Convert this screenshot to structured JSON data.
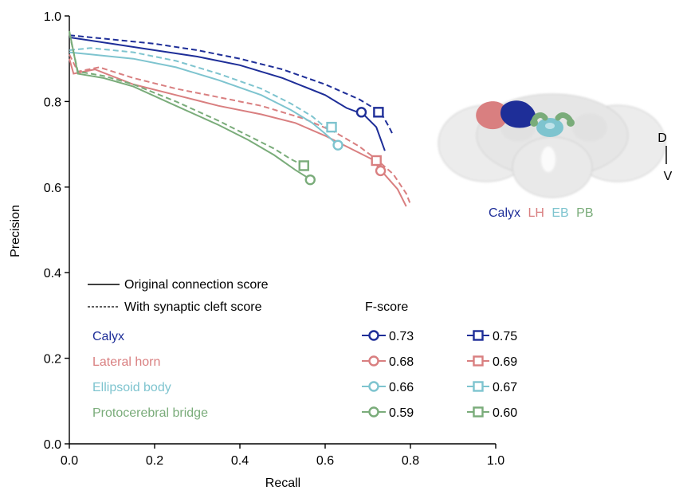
{
  "chart_data": {
    "type": "line",
    "xlabel": "Recall",
    "ylabel": "Precision",
    "xlim": [
      0,
      1.0
    ],
    "ylim": [
      0,
      1.0
    ],
    "xticks": [
      "0.0",
      "0.2",
      "0.4",
      "0.6",
      "0.8",
      "1.0"
    ],
    "yticks": [
      "0.0",
      "0.2",
      "0.4",
      "0.6",
      "0.8",
      "1.0"
    ],
    "grid": false,
    "line_legend": {
      "solid": "Original connection score",
      "dashed": "With synaptic cleft score"
    },
    "fscore_heading": "F-score",
    "series": [
      {
        "name": "Calyx",
        "color": "#1e2e98",
        "solid": {
          "points": [
            [
              0.0,
              0.95
            ],
            [
              0.1,
              0.935
            ],
            [
              0.2,
              0.92
            ],
            [
              0.3,
              0.905
            ],
            [
              0.4,
              0.885
            ],
            [
              0.5,
              0.855
            ],
            [
              0.6,
              0.815
            ],
            [
              0.65,
              0.785
            ],
            [
              0.69,
              0.77
            ],
            [
              0.72,
              0.74
            ],
            [
              0.74,
              0.685
            ]
          ],
          "marker": [
            0.685,
            0.775
          ],
          "fscore": "0.73"
        },
        "dashed": {
          "points": [
            [
              0.0,
              0.955
            ],
            [
              0.1,
              0.945
            ],
            [
              0.2,
              0.935
            ],
            [
              0.3,
              0.92
            ],
            [
              0.4,
              0.9
            ],
            [
              0.5,
              0.875
            ],
            [
              0.6,
              0.84
            ],
            [
              0.68,
              0.805
            ],
            [
              0.73,
              0.775
            ],
            [
              0.75,
              0.74
            ],
            [
              0.76,
              0.72
            ]
          ],
          "marker": [
            0.725,
            0.775
          ],
          "fscore": "0.75"
        }
      },
      {
        "name": "Lateral horn",
        "color": "#d97f80",
        "solid": {
          "points": [
            [
              0.0,
              0.9
            ],
            [
              0.01,
              0.865
            ],
            [
              0.06,
              0.875
            ],
            [
              0.15,
              0.84
            ],
            [
              0.25,
              0.815
            ],
            [
              0.35,
              0.79
            ],
            [
              0.45,
              0.77
            ],
            [
              0.53,
              0.75
            ],
            [
              0.6,
              0.72
            ],
            [
              0.66,
              0.69
            ],
            [
              0.71,
              0.665
            ],
            [
              0.73,
              0.64
            ],
            [
              0.77,
              0.595
            ],
            [
              0.79,
              0.555
            ]
          ],
          "marker": [
            0.73,
            0.638
          ],
          "fscore": "0.68"
        },
        "dashed": {
          "points": [
            [
              0.0,
              0.91
            ],
            [
              0.02,
              0.87
            ],
            [
              0.07,
              0.88
            ],
            [
              0.15,
              0.855
            ],
            [
              0.25,
              0.83
            ],
            [
              0.35,
              0.81
            ],
            [
              0.45,
              0.79
            ],
            [
              0.55,
              0.76
            ],
            [
              0.62,
              0.73
            ],
            [
              0.68,
              0.695
            ],
            [
              0.72,
              0.665
            ],
            [
              0.76,
              0.63
            ],
            [
              0.79,
              0.585
            ],
            [
              0.8,
              0.56
            ]
          ],
          "marker": [
            0.72,
            0.662
          ],
          "fscore": "0.69"
        }
      },
      {
        "name": "Ellipsoid body",
        "color": "#7ec4cf",
        "solid": {
          "points": [
            [
              0.0,
              0.915
            ],
            [
              0.05,
              0.91
            ],
            [
              0.15,
              0.9
            ],
            [
              0.25,
              0.88
            ],
            [
              0.35,
              0.85
            ],
            [
              0.45,
              0.815
            ],
            [
              0.52,
              0.78
            ],
            [
              0.57,
              0.75
            ],
            [
              0.6,
              0.725
            ],
            [
              0.63,
              0.698
            ]
          ],
          "marker": [
            0.63,
            0.698
          ],
          "fscore": "0.66"
        },
        "dashed": {
          "points": [
            [
              0.0,
              0.92
            ],
            [
              0.05,
              0.925
            ],
            [
              0.15,
              0.915
            ],
            [
              0.25,
              0.895
            ],
            [
              0.35,
              0.865
            ],
            [
              0.45,
              0.83
            ],
            [
              0.52,
              0.795
            ],
            [
              0.57,
              0.765
            ],
            [
              0.6,
              0.74
            ],
            [
              0.615,
              0.74
            ]
          ],
          "marker": [
            0.615,
            0.74
          ],
          "fscore": "0.67"
        }
      },
      {
        "name": "Protocerebral bridge",
        "color": "#7aac7a",
        "solid": {
          "points": [
            [
              0.0,
              0.965
            ],
            [
              0.02,
              0.865
            ],
            [
              0.08,
              0.855
            ],
            [
              0.15,
              0.835
            ],
            [
              0.25,
              0.79
            ],
            [
              0.35,
              0.745
            ],
            [
              0.42,
              0.71
            ],
            [
              0.48,
              0.675
            ],
            [
              0.53,
              0.64
            ],
            [
              0.57,
              0.615
            ]
          ],
          "marker": [
            0.565,
            0.617
          ],
          "fscore": "0.59"
        },
        "dashed": {
          "points": [
            [
              0.0,
              0.96
            ],
            [
              0.02,
              0.87
            ],
            [
              0.08,
              0.86
            ],
            [
              0.15,
              0.84
            ],
            [
              0.25,
              0.8
            ],
            [
              0.35,
              0.755
            ],
            [
              0.42,
              0.72
            ],
            [
              0.48,
              0.69
            ],
            [
              0.52,
              0.665
            ],
            [
              0.55,
              0.65
            ]
          ],
          "marker": [
            0.55,
            0.65
          ],
          "fscore": "0.60"
        }
      }
    ]
  },
  "inset": {
    "labels": [
      {
        "text": "Calyx",
        "color": "#1e2e98"
      },
      {
        "text": "LH",
        "color": "#d97f80"
      },
      {
        "text": "EB",
        "color": "#7ec4cf"
      },
      {
        "text": "PB",
        "color": "#7aac7a"
      }
    ],
    "axis_top": "D",
    "axis_bottom": "V"
  }
}
